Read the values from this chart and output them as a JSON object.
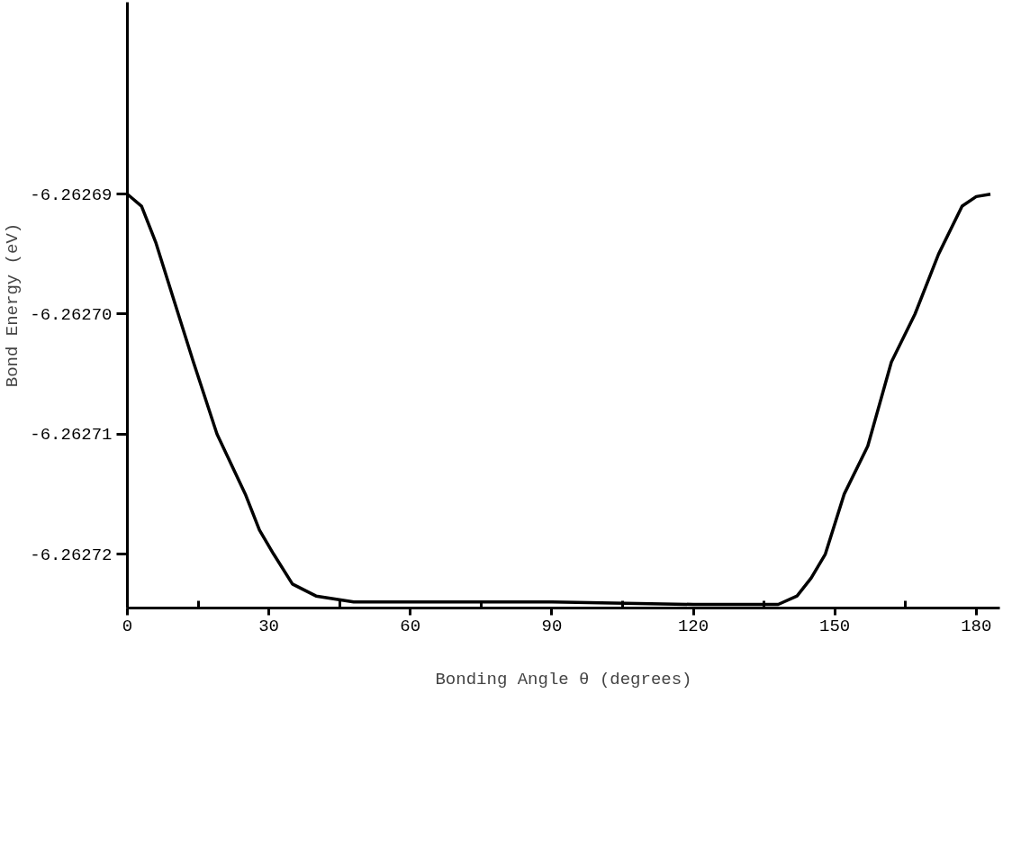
{
  "chart_data": {
    "type": "line",
    "xlabel": "Bonding Angle θ (degrees)",
    "ylabel": "Bond Energy (eV)",
    "x": [
      0,
      3,
      6,
      10,
      14,
      19,
      25,
      28,
      31,
      35,
      40,
      48,
      90,
      120,
      138,
      142,
      145,
      148,
      152,
      157,
      162,
      167,
      172,
      177,
      180,
      183
    ],
    "series": [
      {
        "color": "#000000",
        "values": [
          -6.26269,
          -6.262691,
          -6.262694,
          -6.262699,
          -6.262704,
          -6.26271,
          -6.262715,
          -6.262718,
          -6.26272,
          -6.2627225,
          -6.2627235,
          -6.262724,
          -6.262724,
          -6.2627242,
          -6.2627242,
          -6.2627235,
          -6.262722,
          -6.26272,
          -6.262715,
          -6.262711,
          -6.262704,
          -6.2627,
          -6.262695,
          -6.262691,
          -6.2626902,
          -6.26269
        ]
      }
    ],
    "xlim": [
      0,
      185
    ],
    "ylim": [
      -6.2627245,
      -6.262674
    ],
    "xticks": [
      0,
      {
        "value": 15,
        "label": null
      },
      30,
      {
        "value": 45,
        "label": null
      },
      60,
      {
        "value": 75,
        "label": null
      },
      90,
      {
        "value": 105,
        "label": null
      },
      120,
      {
        "value": 135,
        "label": null
      },
      150,
      {
        "value": 165,
        "label": null
      },
      180
    ],
    "yticks": [
      -6.26272,
      -6.26271,
      {
        "value": -6.2627,
        "label": "-6.26270"
      },
      -6.26269
    ],
    "grid": false,
    "marker": "none",
    "line_style": "solid"
  }
}
